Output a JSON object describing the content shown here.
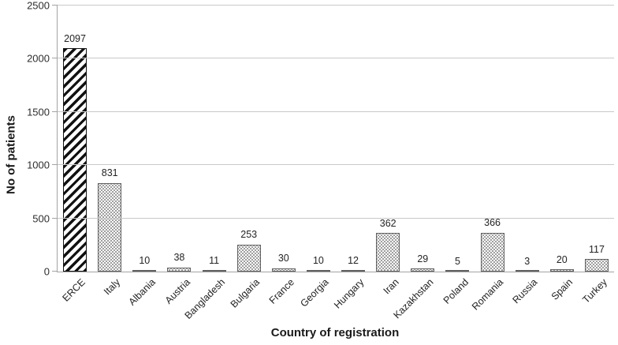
{
  "chart_data": {
    "type": "bar",
    "title": "",
    "xlabel": "Country of registration",
    "ylabel": "No of patients",
    "categories": [
      "ERCE",
      "Italy",
      "Albania",
      "Austria",
      "Bangladesh",
      "Bulgaria",
      "France",
      "Georgia",
      "Hungary",
      "Iran",
      "Kazakhstan",
      "Poland",
      "Romania",
      "Russia",
      "Spain",
      "Turkey"
    ],
    "values": [
      2097,
      831,
      10,
      38,
      11,
      253,
      30,
      10,
      12,
      362,
      29,
      5,
      366,
      3,
      20,
      117
    ],
    "patterns": [
      "hatch",
      "dots",
      "dots",
      "dots",
      "dots",
      "dots",
      "dots",
      "dots",
      "dots",
      "dots",
      "dots",
      "dots",
      "dots",
      "dots",
      "dots",
      "dots"
    ],
    "ylim": [
      0,
      2500
    ],
    "yticks": [
      0,
      500,
      1000,
      1500,
      2000,
      2500
    ],
    "grid": true,
    "legend": false,
    "data_labels": true
  },
  "colors": {
    "axis": "#a3a3a3",
    "gridline": "#c9c9c9",
    "text": "#2e2e2e",
    "title": "#1a1a1a",
    "bar_border": "#606060",
    "dot": "#9a9a9a",
    "hatch": "#111111"
  }
}
